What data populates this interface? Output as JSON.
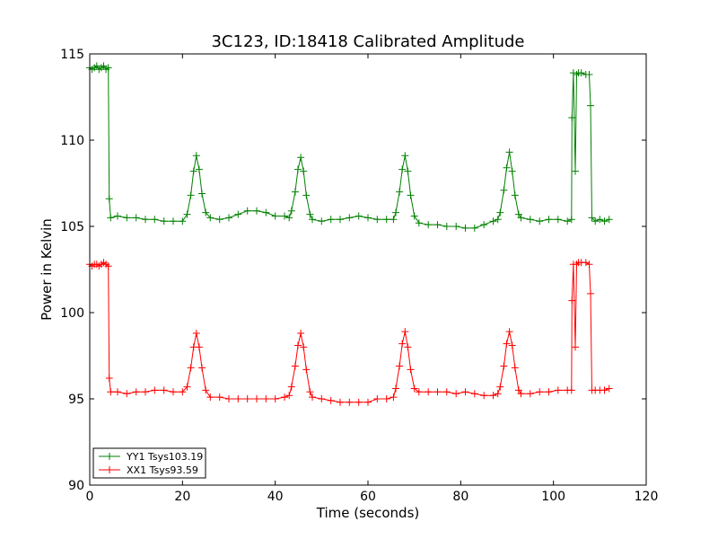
{
  "chart_data": {
    "type": "line",
    "title": "3C123, ID:18418 Calibrated Amplitude",
    "xlabel": "Time (seconds)",
    "ylabel": "Power in Kelvin",
    "xlim": [
      0,
      120
    ],
    "ylim": [
      90,
      115
    ],
    "xticks": [
      "0",
      "20",
      "40",
      "60",
      "80",
      "100",
      "120"
    ],
    "yticks": [
      "90",
      "95",
      "100",
      "105",
      "110",
      "115"
    ],
    "grid": false,
    "legend_position": "lower-left",
    "series": [
      {
        "name": "YY1 Tsys103.19",
        "color": "#008000",
        "marker": "plus",
        "base": 105.4,
        "high": 114.1,
        "peak": 109.1,
        "drop_time": 4.2,
        "return_time": 104.2,
        "end_drop_time": 108.3,
        "peak_times": [
          23.0,
          45.5,
          68.0,
          90.5
        ],
        "points": [
          [
            0.0,
            114.2
          ],
          [
            0.5,
            114.1
          ],
          [
            1.0,
            114.2
          ],
          [
            1.5,
            114.3
          ],
          [
            2.0,
            114.1
          ],
          [
            2.5,
            114.2
          ],
          [
            3.0,
            114.3
          ],
          [
            3.5,
            114.1
          ],
          [
            4.0,
            114.2
          ],
          [
            4.2,
            106.6
          ],
          [
            4.5,
            105.5
          ],
          [
            6,
            105.6
          ],
          [
            8,
            105.5
          ],
          [
            10,
            105.5
          ],
          [
            12,
            105.4
          ],
          [
            14,
            105.4
          ],
          [
            16,
            105.3
          ],
          [
            18,
            105.3
          ],
          [
            20,
            105.3
          ],
          [
            21.0,
            105.7
          ],
          [
            21.8,
            106.8
          ],
          [
            22.4,
            108.2
          ],
          [
            23.0,
            109.1
          ],
          [
            23.6,
            108.3
          ],
          [
            24.2,
            106.9
          ],
          [
            25.0,
            105.8
          ],
          [
            26,
            105.5
          ],
          [
            28,
            105.4
          ],
          [
            30,
            105.5
          ],
          [
            32,
            105.7
          ],
          [
            34,
            105.9
          ],
          [
            36,
            105.9
          ],
          [
            38,
            105.8
          ],
          [
            40,
            105.6
          ],
          [
            42,
            105.6
          ],
          [
            43,
            105.5
          ],
          [
            43.5,
            105.9
          ],
          [
            44.3,
            107.0
          ],
          [
            44.9,
            108.3
          ],
          [
            45.5,
            109.0
          ],
          [
            46.1,
            108.2
          ],
          [
            46.7,
            106.8
          ],
          [
            47.5,
            105.7
          ],
          [
            48,
            105.4
          ],
          [
            50,
            105.3
          ],
          [
            52,
            105.4
          ],
          [
            54,
            105.4
          ],
          [
            56,
            105.5
          ],
          [
            58,
            105.6
          ],
          [
            60,
            105.5
          ],
          [
            62,
            105.4
          ],
          [
            64,
            105.4
          ],
          [
            65.5,
            105.4
          ],
          [
            66.0,
            105.8
          ],
          [
            66.8,
            107.0
          ],
          [
            67.4,
            108.3
          ],
          [
            68.0,
            109.1
          ],
          [
            68.6,
            108.2
          ],
          [
            69.2,
            106.8
          ],
          [
            70.0,
            105.6
          ],
          [
            71,
            105.2
          ],
          [
            73,
            105.1
          ],
          [
            75,
            105.1
          ],
          [
            77,
            105.0
          ],
          [
            79,
            105.0
          ],
          [
            81,
            104.9
          ],
          [
            83,
            104.9
          ],
          [
            85,
            105.1
          ],
          [
            87,
            105.3
          ],
          [
            88,
            105.4
          ],
          [
            88.5,
            105.8
          ],
          [
            89.3,
            107.1
          ],
          [
            89.9,
            108.4
          ],
          [
            90.5,
            109.3
          ],
          [
            91.1,
            108.2
          ],
          [
            91.7,
            106.8
          ],
          [
            92.5,
            105.7
          ],
          [
            93,
            105.5
          ],
          [
            95,
            105.4
          ],
          [
            97,
            105.3
          ],
          [
            99,
            105.4
          ],
          [
            101,
            105.4
          ],
          [
            103,
            105.3
          ],
          [
            103.9,
            105.4
          ],
          [
            104.0,
            111.3
          ],
          [
            104.3,
            113.9
          ],
          [
            104.7,
            108.2
          ],
          [
            105.0,
            113.8
          ],
          [
            105.4,
            113.9
          ],
          [
            106,
            113.9
          ],
          [
            107,
            113.8
          ],
          [
            107.7,
            113.8
          ],
          [
            108.0,
            112.0
          ],
          [
            108.3,
            105.5
          ],
          [
            109,
            105.3
          ],
          [
            110,
            105.4
          ],
          [
            111,
            105.3
          ],
          [
            112,
            105.4
          ]
        ]
      },
      {
        "name": "XX1 Tsys93.59",
        "color": "#ff0000",
        "marker": "plus",
        "base": 95.3,
        "high": 102.8,
        "peak": 98.9,
        "drop_time": 4.2,
        "return_time": 104.2,
        "end_drop_time": 108.3,
        "peak_times": [
          23.0,
          45.5,
          68.0,
          90.5
        ],
        "points": [
          [
            0.0,
            102.8
          ],
          [
            0.5,
            102.7
          ],
          [
            1.0,
            102.8
          ],
          [
            1.5,
            102.8
          ],
          [
            2.0,
            102.7
          ],
          [
            2.5,
            102.8
          ],
          [
            3.0,
            102.9
          ],
          [
            3.5,
            102.8
          ],
          [
            4.0,
            102.7
          ],
          [
            4.2,
            96.2
          ],
          [
            4.5,
            95.4
          ],
          [
            6,
            95.4
          ],
          [
            8,
            95.3
          ],
          [
            10,
            95.4
          ],
          [
            12,
            95.4
          ],
          [
            14,
            95.5
          ],
          [
            16,
            95.5
          ],
          [
            18,
            95.4
          ],
          [
            20,
            95.4
          ],
          [
            21.0,
            95.7
          ],
          [
            21.8,
            96.8
          ],
          [
            22.4,
            98.0
          ],
          [
            23.0,
            98.8
          ],
          [
            23.6,
            98.0
          ],
          [
            24.2,
            96.8
          ],
          [
            25.0,
            95.5
          ],
          [
            26,
            95.1
          ],
          [
            28,
            95.1
          ],
          [
            30,
            95.0
          ],
          [
            32,
            95.0
          ],
          [
            34,
            95.0
          ],
          [
            36,
            95.0
          ],
          [
            38,
            95.0
          ],
          [
            40,
            95.0
          ],
          [
            42,
            95.1
          ],
          [
            43,
            95.2
          ],
          [
            43.5,
            95.7
          ],
          [
            44.3,
            96.9
          ],
          [
            44.9,
            98.1
          ],
          [
            45.5,
            98.8
          ],
          [
            46.1,
            98.0
          ],
          [
            46.7,
            96.7
          ],
          [
            47.5,
            95.4
          ],
          [
            48,
            95.1
          ],
          [
            50,
            95.0
          ],
          [
            52,
            94.9
          ],
          [
            54,
            94.8
          ],
          [
            56,
            94.8
          ],
          [
            58,
            94.8
          ],
          [
            60,
            94.8
          ],
          [
            62,
            95.0
          ],
          [
            64,
            95.0
          ],
          [
            65.5,
            95.1
          ],
          [
            66.0,
            95.6
          ],
          [
            66.8,
            96.9
          ],
          [
            67.4,
            98.2
          ],
          [
            68.0,
            98.9
          ],
          [
            68.6,
            98.0
          ],
          [
            69.2,
            96.7
          ],
          [
            70.0,
            95.6
          ],
          [
            71,
            95.4
          ],
          [
            73,
            95.4
          ],
          [
            75,
            95.4
          ],
          [
            77,
            95.4
          ],
          [
            79,
            95.3
          ],
          [
            81,
            95.4
          ],
          [
            83,
            95.3
          ],
          [
            85,
            95.2
          ],
          [
            87,
            95.2
          ],
          [
            88,
            95.3
          ],
          [
            88.5,
            95.7
          ],
          [
            89.3,
            96.9
          ],
          [
            89.9,
            98.2
          ],
          [
            90.5,
            98.9
          ],
          [
            91.1,
            98.1
          ],
          [
            91.7,
            96.8
          ],
          [
            92.5,
            95.5
          ],
          [
            93,
            95.3
          ],
          [
            95,
            95.3
          ],
          [
            97,
            95.4
          ],
          [
            99,
            95.4
          ],
          [
            101,
            95.5
          ],
          [
            103,
            95.5
          ],
          [
            103.9,
            95.5
          ],
          [
            104.0,
            100.7
          ],
          [
            104.3,
            102.8
          ],
          [
            104.7,
            98.0
          ],
          [
            105.0,
            102.8
          ],
          [
            105.4,
            102.9
          ],
          [
            106,
            102.9
          ],
          [
            107,
            102.9
          ],
          [
            107.7,
            102.8
          ],
          [
            108.0,
            101.1
          ],
          [
            108.3,
            95.5
          ],
          [
            109,
            95.5
          ],
          [
            110,
            95.5
          ],
          [
            111,
            95.5
          ],
          [
            112,
            95.6
          ]
        ]
      }
    ]
  }
}
